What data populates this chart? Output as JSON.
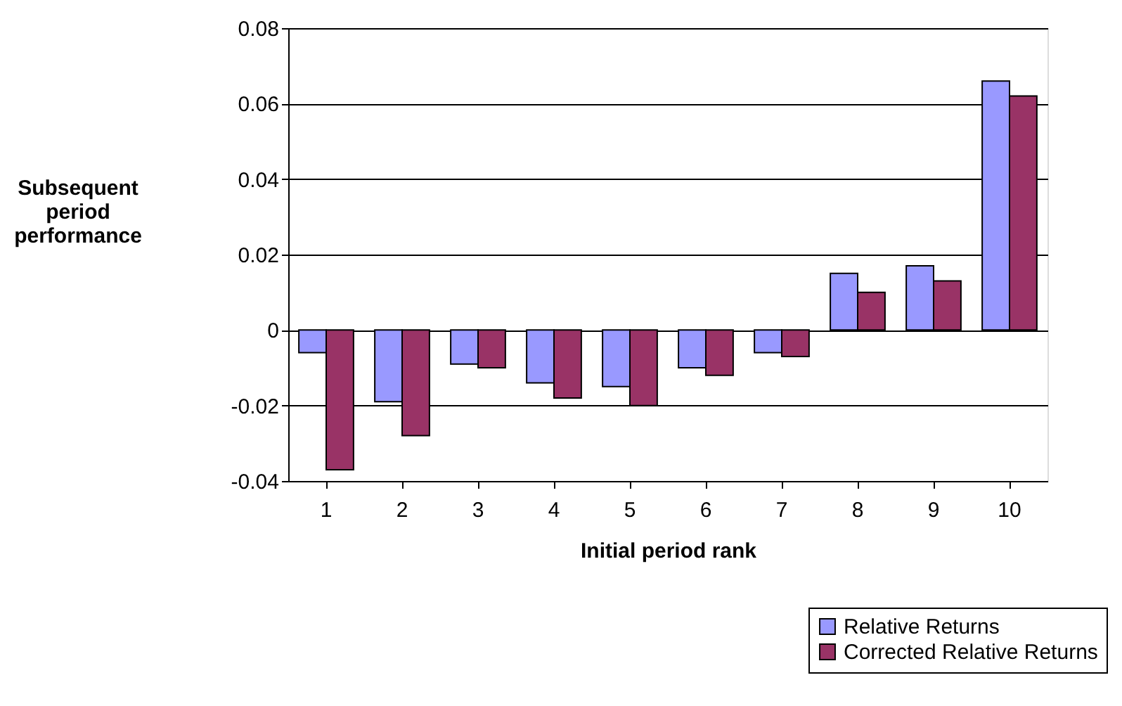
{
  "chart_data": {
    "type": "bar",
    "xlabel": "Initial period rank",
    "ylabel": "Subsequent period performance",
    "categories": [
      "1",
      "2",
      "3",
      "4",
      "5",
      "6",
      "7",
      "8",
      "9",
      "10"
    ],
    "series": [
      {
        "name": "Relative Returns",
        "color": "#9999ff",
        "values": [
          -0.006,
          -0.019,
          -0.009,
          -0.014,
          -0.015,
          -0.01,
          -0.006,
          0.015,
          0.017,
          0.066
        ]
      },
      {
        "name": "Corrected Relative Returns",
        "color": "#993366",
        "values": [
          -0.037,
          -0.028,
          -0.01,
          -0.018,
          -0.02,
          -0.012,
          -0.007,
          0.01,
          0.013,
          0.062
        ]
      }
    ],
    "ylim": [
      -0.04,
      0.08
    ],
    "yticks": [
      -0.04,
      -0.02,
      0,
      0.02,
      0.04,
      0.06,
      0.08
    ],
    "grid": "y",
    "legend": "bottom right"
  }
}
